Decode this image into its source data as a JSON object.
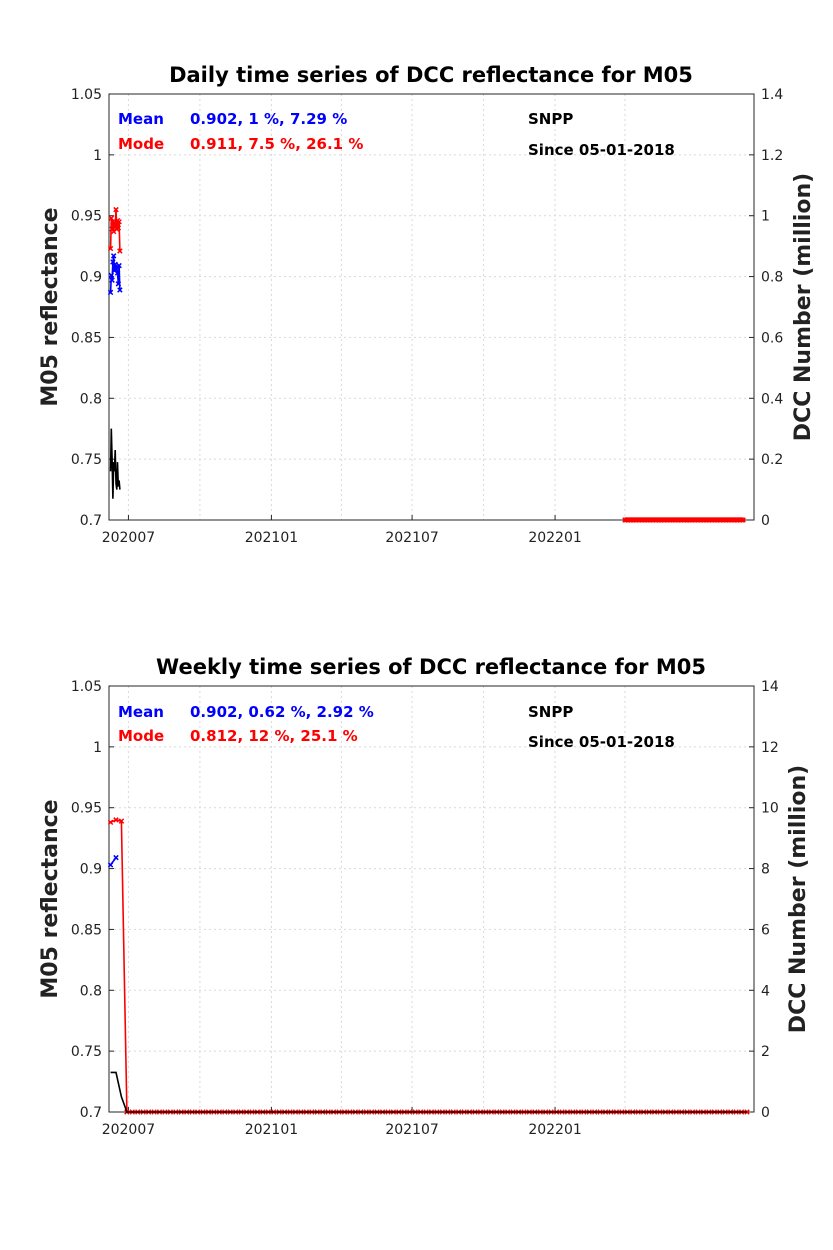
{
  "chart_data": [
    {
      "type": "line",
      "title": "Daily time series of DCC reflectance for M05",
      "ylabel": "M05 reflectance",
      "y2label": "DCC Number (million)",
      "ylim": [
        0.7,
        1.05
      ],
      "y2lim": [
        0,
        1.4
      ],
      "yticks": [
        "1.05",
        "1",
        "0.95",
        "0.9",
        "0.85",
        "0.8",
        "0.75",
        "0.7"
      ],
      "y2ticks": [
        "1.4",
        "1.2",
        "1",
        "0.8",
        "0.6",
        "0.4",
        "0.2",
        "0"
      ],
      "xticks": [
        "202007",
        "202101",
        "202107",
        "202201"
      ],
      "grid": true,
      "annotations": {
        "mean_label": "Mean",
        "mean_stats": "0.902, 1 %, 7.29 %",
        "mode_label": "Mode",
        "mode_stats": "0.911, 7.5 %, 26.1 %",
        "satellite": "SNPP",
        "since": "Since 05-01-2018"
      },
      "series": [
        {
          "color": "#0000ff",
          "axis": "left",
          "points": [
            [
              "2020-06-08",
              0.887
            ],
            [
              "2020-06-09",
              0.901
            ],
            [
              "2020-06-10",
              0.897
            ],
            [
              "2020-06-11",
              0.912
            ],
            [
              "2020-06-12",
              0.917
            ],
            [
              "2020-06-13",
              0.905
            ],
            [
              "2020-06-14",
              0.91
            ],
            [
              "2020-06-15",
              0.906
            ],
            [
              "2020-06-16",
              0.908
            ],
            [
              "2020-06-17",
              0.903
            ],
            [
              "2020-06-18",
              0.894
            ],
            [
              "2020-06-19",
              0.909
            ],
            [
              "2020-06-20",
              0.889
            ]
          ]
        },
        {
          "color": "#ff0000",
          "axis": "left",
          "points": [
            [
              "2020-06-08",
              0.923
            ],
            [
              "2020-06-09",
              0.948
            ],
            [
              "2020-06-10",
              0.939
            ],
            [
              "2020-06-11",
              0.945
            ],
            [
              "2020-06-12",
              0.937
            ],
            [
              "2020-06-13",
              0.944
            ],
            [
              "2020-06-14",
              0.941
            ],
            [
              "2020-06-15",
              0.955
            ],
            [
              "2020-06-16",
              0.939
            ],
            [
              "2020-06-17",
              0.946
            ],
            [
              "2020-06-18",
              0.94
            ],
            [
              "2020-06-19",
              0.945
            ],
            [
              "2020-06-20",
              0.921
            ]
          ]
        },
        {
          "color": "#000000",
          "axis": "right",
          "points": [
            [
              "2020-06-08",
              0.16
            ],
            [
              "2020-06-09",
              0.3
            ],
            [
              "2020-06-10",
              0.2
            ],
            [
              "2020-06-11",
              0.07
            ],
            [
              "2020-06-12",
              0.19
            ],
            [
              "2020-06-13",
              0.16
            ],
            [
              "2020-06-14",
              0.23
            ],
            [
              "2020-06-15",
              0.12
            ],
            [
              "2020-06-16",
              0.1
            ],
            [
              "2020-06-17",
              0.19
            ],
            [
              "2020-06-18",
              0.11
            ],
            [
              "2020-06-19",
              0.13
            ],
            [
              "2020-06-20",
              0.1
            ]
          ]
        },
        {
          "color": "#ff0000",
          "axis": "left",
          "markers_only": true,
          "range": [
            "2022-04-01",
            "2022-09-01"
          ],
          "value": 0.7
        }
      ]
    },
    {
      "type": "line",
      "title": "Weekly time series of DCC reflectance for M05",
      "ylabel": "M05 reflectance",
      "y2label": "DCC Number (million)",
      "ylim": [
        0.7,
        1.05
      ],
      "y2lim": [
        0,
        14
      ],
      "yticks": [
        "1.05",
        "1",
        "0.95",
        "0.9",
        "0.85",
        "0.8",
        "0.75",
        "0.7"
      ],
      "y2ticks": [
        "14",
        "12",
        "10",
        "8",
        "6",
        "4",
        "2",
        "0"
      ],
      "xticks": [
        "202007",
        "202101",
        "202107",
        "202201"
      ],
      "grid": true,
      "annotations": {
        "mean_label": "Mean",
        "mean_stats": "0.902, 0.62 %, 2.92 %",
        "mode_label": "Mode",
        "mode_stats": "0.812, 12 %, 25.1 %",
        "satellite": "SNPP",
        "since": "Since 05-01-2018"
      },
      "series": [
        {
          "color": "#0000ff",
          "axis": "left",
          "points": [
            [
              "2020-06-08",
              0.903
            ],
            [
              "2020-06-15",
              0.909
            ]
          ]
        },
        {
          "color": "#ff0000",
          "axis": "left",
          "points": [
            [
              "2020-06-08",
              0.938
            ],
            [
              "2020-06-15",
              0.94
            ],
            [
              "2020-06-22",
              0.939
            ],
            [
              "2020-06-29",
              0.7
            ]
          ],
          "then_flat_until": "2022-09-05",
          "flat_value": 0.7
        },
        {
          "color": "#000000",
          "axis": "right",
          "points": [
            [
              "2020-06-08",
              1.3
            ],
            [
              "2020-06-15",
              1.3
            ],
            [
              "2020-06-22",
              0.5
            ],
            [
              "2020-06-29",
              0
            ]
          ],
          "then_flat_until": "2022-09-05",
          "flat_value": 0
        }
      ]
    }
  ]
}
